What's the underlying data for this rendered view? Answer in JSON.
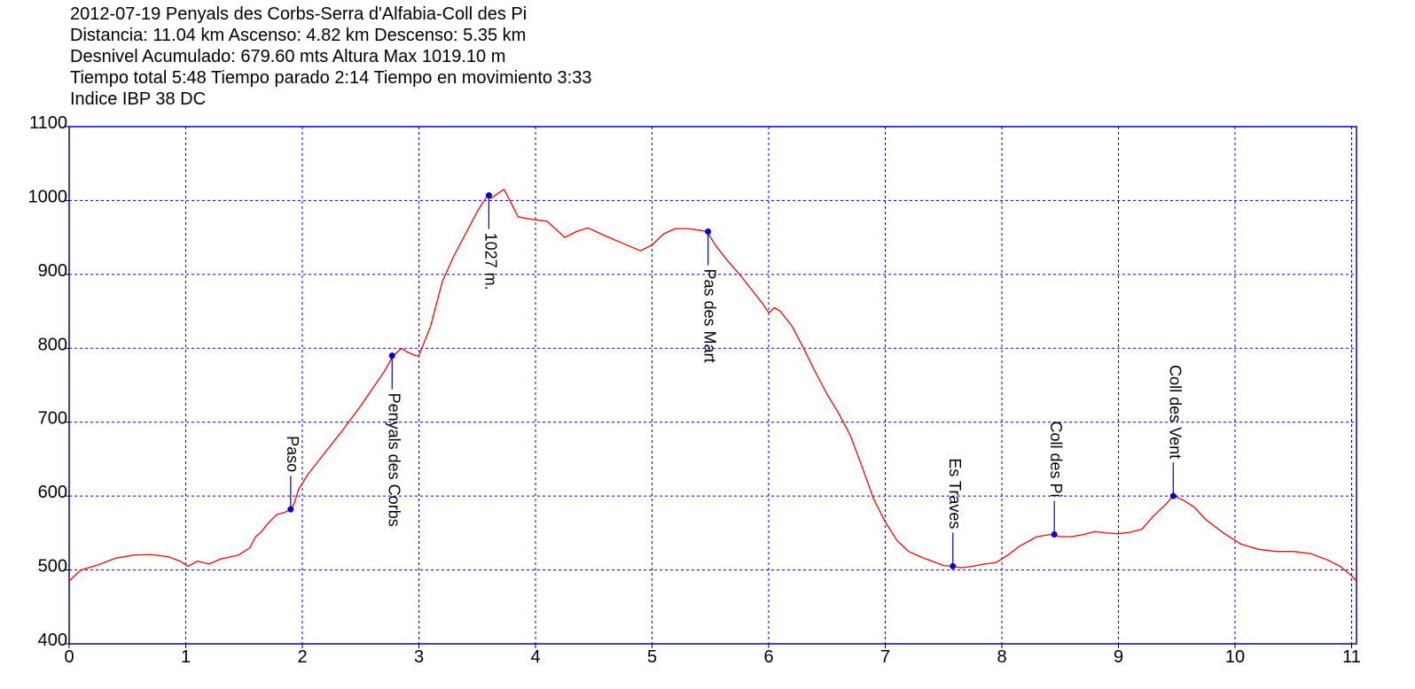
{
  "header": {
    "lines": [
      "2012-07-19 Penyals des Corbs-Serra d'Alfabia-Coll des Pi",
      "Distancia: 11.04 km Ascenso: 4.82 km Descenso: 5.35 km",
      "Desnivel Acumulado: 679.60 mts  Altura Max 1019.10 m",
      "Tiempo total 5:48 Tiempo parado 2:14 Tiempo en movimiento 3:33",
      "Indice IBP 38 DC"
    ]
  },
  "chart_data": {
    "type": "line",
    "xlim": [
      0,
      11.04
    ],
    "ylim": [
      400,
      1100
    ],
    "x_ticks": [
      0,
      1,
      2,
      3,
      4,
      5,
      6,
      7,
      8,
      9,
      10,
      11
    ],
    "x_tick_labels": [
      "0",
      "1",
      "2",
      "3",
      "4",
      "5",
      "6",
      "7",
      "8",
      "9",
      "10",
      "11"
    ],
    "y_ticks": [
      400,
      500,
      600,
      700,
      800,
      900,
      1000,
      1100
    ],
    "y_tick_labels": [
      "400",
      "500",
      "600",
      "700",
      "800",
      "900",
      "1000",
      "1100"
    ],
    "grid": true,
    "colors": {
      "line": "#ff0000",
      "grid": "#0000cc",
      "marker": "#0000cc",
      "frame": "#0000cc"
    },
    "series": [
      {
        "x": [
          0.0,
          0.1,
          0.25,
          0.4,
          0.55,
          0.7,
          0.85,
          0.95,
          1.02,
          1.1,
          1.2,
          1.3,
          1.45,
          1.55,
          1.6,
          1.65,
          1.7,
          1.78,
          1.85,
          1.9,
          1.93,
          1.97,
          2.05,
          2.2,
          2.35,
          2.5,
          2.6,
          2.7,
          2.78,
          2.85,
          2.9,
          2.97,
          3.0,
          3.1,
          3.2,
          3.3,
          3.4,
          3.5,
          3.58,
          3.62,
          3.68,
          3.73,
          3.78,
          3.85,
          3.95,
          4.1,
          4.25,
          4.35,
          4.45,
          4.6,
          4.75,
          4.9,
          5.0,
          5.1,
          5.2,
          5.3,
          5.4,
          5.47,
          5.55,
          5.65,
          5.75,
          5.85,
          5.95,
          6.0,
          6.05,
          6.1,
          6.2,
          6.3,
          6.4,
          6.5,
          6.6,
          6.7,
          6.8,
          6.9,
          7.0,
          7.1,
          7.2,
          7.3,
          7.4,
          7.5,
          7.58,
          7.65,
          7.75,
          7.85,
          7.95,
          8.05,
          8.15,
          8.3,
          8.42,
          8.5,
          8.6,
          8.7,
          8.8,
          8.9,
          9.0,
          9.1,
          9.2,
          9.3,
          9.4,
          9.47,
          9.55,
          9.65,
          9.75,
          9.9,
          10.05,
          10.2,
          10.35,
          10.5,
          10.65,
          10.8,
          10.9,
          11.0,
          11.04
        ],
        "y": [
          485,
          500,
          507,
          516,
          520,
          521,
          518,
          512,
          505,
          512,
          508,
          515,
          520,
          530,
          545,
          552,
          562,
          575,
          578,
          582,
          590,
          610,
          630,
          660,
          690,
          722,
          745,
          768,
          790,
          800,
          795,
          790,
          790,
          830,
          890,
          925,
          955,
          985,
          1005,
          1003,
          1010,
          1015,
          1000,
          978,
          975,
          972,
          950,
          958,
          963,
          952,
          942,
          932,
          940,
          955,
          962,
          962,
          960,
          958,
          938,
          918,
          900,
          880,
          860,
          848,
          855,
          850,
          830,
          800,
          768,
          738,
          712,
          682,
          640,
          596,
          565,
          540,
          525,
          518,
          512,
          506,
          505,
          503,
          505,
          508,
          510,
          520,
          532,
          545,
          548,
          545,
          545,
          548,
          552,
          550,
          549,
          551,
          555,
          573,
          588,
          600,
          595,
          585,
          568,
          550,
          535,
          528,
          525,
          525,
          522,
          513,
          505,
          492,
          485
        ]
      }
    ],
    "waypoints": [
      {
        "name": "Paso",
        "x": 1.9,
        "y": 582
      },
      {
        "name": "Penyals des Corbs",
        "x": 2.77,
        "y": 790
      },
      {
        "name": "1027 m.",
        "x": 3.6,
        "y": 1007
      },
      {
        "name": "Pas des Mart",
        "x": 5.48,
        "y": 958
      },
      {
        "name": "Es Traves",
        "x": 7.58,
        "y": 505
      },
      {
        "name": "Coll des Pi",
        "x": 8.45,
        "y": 548
      },
      {
        "name": "Coll des Vent",
        "x": 9.47,
        "y": 600
      }
    ]
  }
}
